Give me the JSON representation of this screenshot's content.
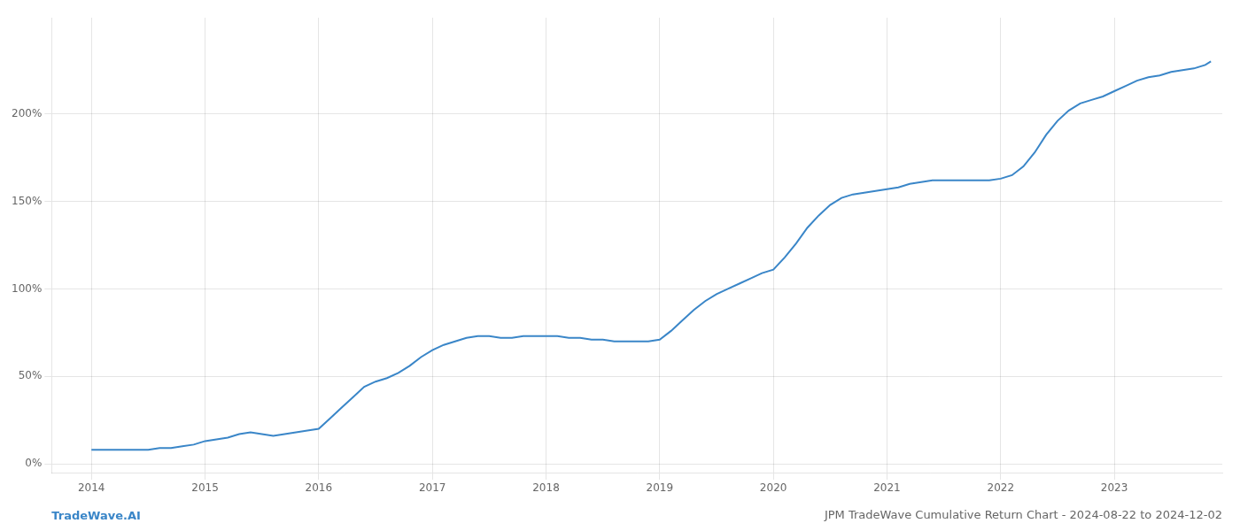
{
  "chart_data": {
    "type": "line",
    "title": "JPM TradeWave Cumulative Return Chart - 2024-08-22 to 2024-12-02",
    "annotations": [
      "TradeWave.AI"
    ],
    "color": "#3a86c8",
    "x": [
      2014.0,
      2014.1,
      2014.2,
      2014.3,
      2014.4,
      2014.5,
      2014.6,
      2014.7,
      2014.8,
      2014.9,
      2015.0,
      2015.1,
      2015.2,
      2015.3,
      2015.4,
      2015.5,
      2015.6,
      2015.7,
      2015.8,
      2015.9,
      2016.0,
      2016.1,
      2016.2,
      2016.3,
      2016.4,
      2016.5,
      2016.6,
      2016.7,
      2016.8,
      2016.9,
      2017.0,
      2017.1,
      2017.2,
      2017.3,
      2017.4,
      2017.5,
      2017.6,
      2017.7,
      2017.8,
      2017.9,
      2018.0,
      2018.1,
      2018.2,
      2018.3,
      2018.4,
      2018.5,
      2018.6,
      2018.7,
      2018.8,
      2018.9,
      2019.0,
      2019.1,
      2019.2,
      2019.3,
      2019.4,
      2019.5,
      2019.6,
      2019.7,
      2019.8,
      2019.9,
      2020.0,
      2020.1,
      2020.2,
      2020.3,
      2020.4,
      2020.5,
      2020.6,
      2020.7,
      2020.8,
      2020.9,
      2021.0,
      2021.1,
      2021.2,
      2021.3,
      2021.4,
      2021.5,
      2021.6,
      2021.7,
      2021.8,
      2021.9,
      2022.0,
      2022.1,
      2022.2,
      2022.3,
      2022.4,
      2022.5,
      2022.6,
      2022.7,
      2022.8,
      2022.9,
      2023.0,
      2023.1,
      2023.2,
      2023.3,
      2023.4,
      2023.5,
      2023.6,
      2023.7,
      2023.8,
      2023.85
    ],
    "values": [
      8,
      8,
      8,
      8,
      8,
      8,
      9,
      9,
      10,
      11,
      13,
      14,
      15,
      17,
      18,
      17,
      16,
      17,
      18,
      19,
      20,
      26,
      32,
      38,
      44,
      47,
      49,
      52,
      56,
      61,
      65,
      68,
      70,
      72,
      73,
      73,
      72,
      72,
      73,
      73,
      73,
      73,
      72,
      72,
      71,
      71,
      70,
      70,
      70,
      70,
      71,
      76,
      82,
      88,
      93,
      97,
      100,
      103,
      106,
      109,
      111,
      118,
      126,
      135,
      142,
      148,
      152,
      154,
      155,
      156,
      157,
      158,
      160,
      161,
      162,
      162,
      162,
      162,
      162,
      162,
      163,
      165,
      170,
      178,
      188,
      196,
      202,
      206,
      208,
      210,
      213,
      216,
      219,
      221,
      222,
      224,
      225,
      226,
      228,
      230
    ],
    "xlim": [
      2013.65,
      2023.95
    ],
    "xticks": [
      2014,
      2015,
      2016,
      2017,
      2018,
      2019,
      2020,
      2021,
      2022,
      2023
    ],
    "ylim": [
      -5,
      255
    ],
    "yticks": [
      {
        "value": 0,
        "label": "0%"
      },
      {
        "value": 50,
        "label": "50%"
      },
      {
        "value": 100,
        "label": "100%"
      },
      {
        "value": 150,
        "label": "150%"
      },
      {
        "value": 200,
        "label": "200%"
      }
    ],
    "grid": true
  }
}
